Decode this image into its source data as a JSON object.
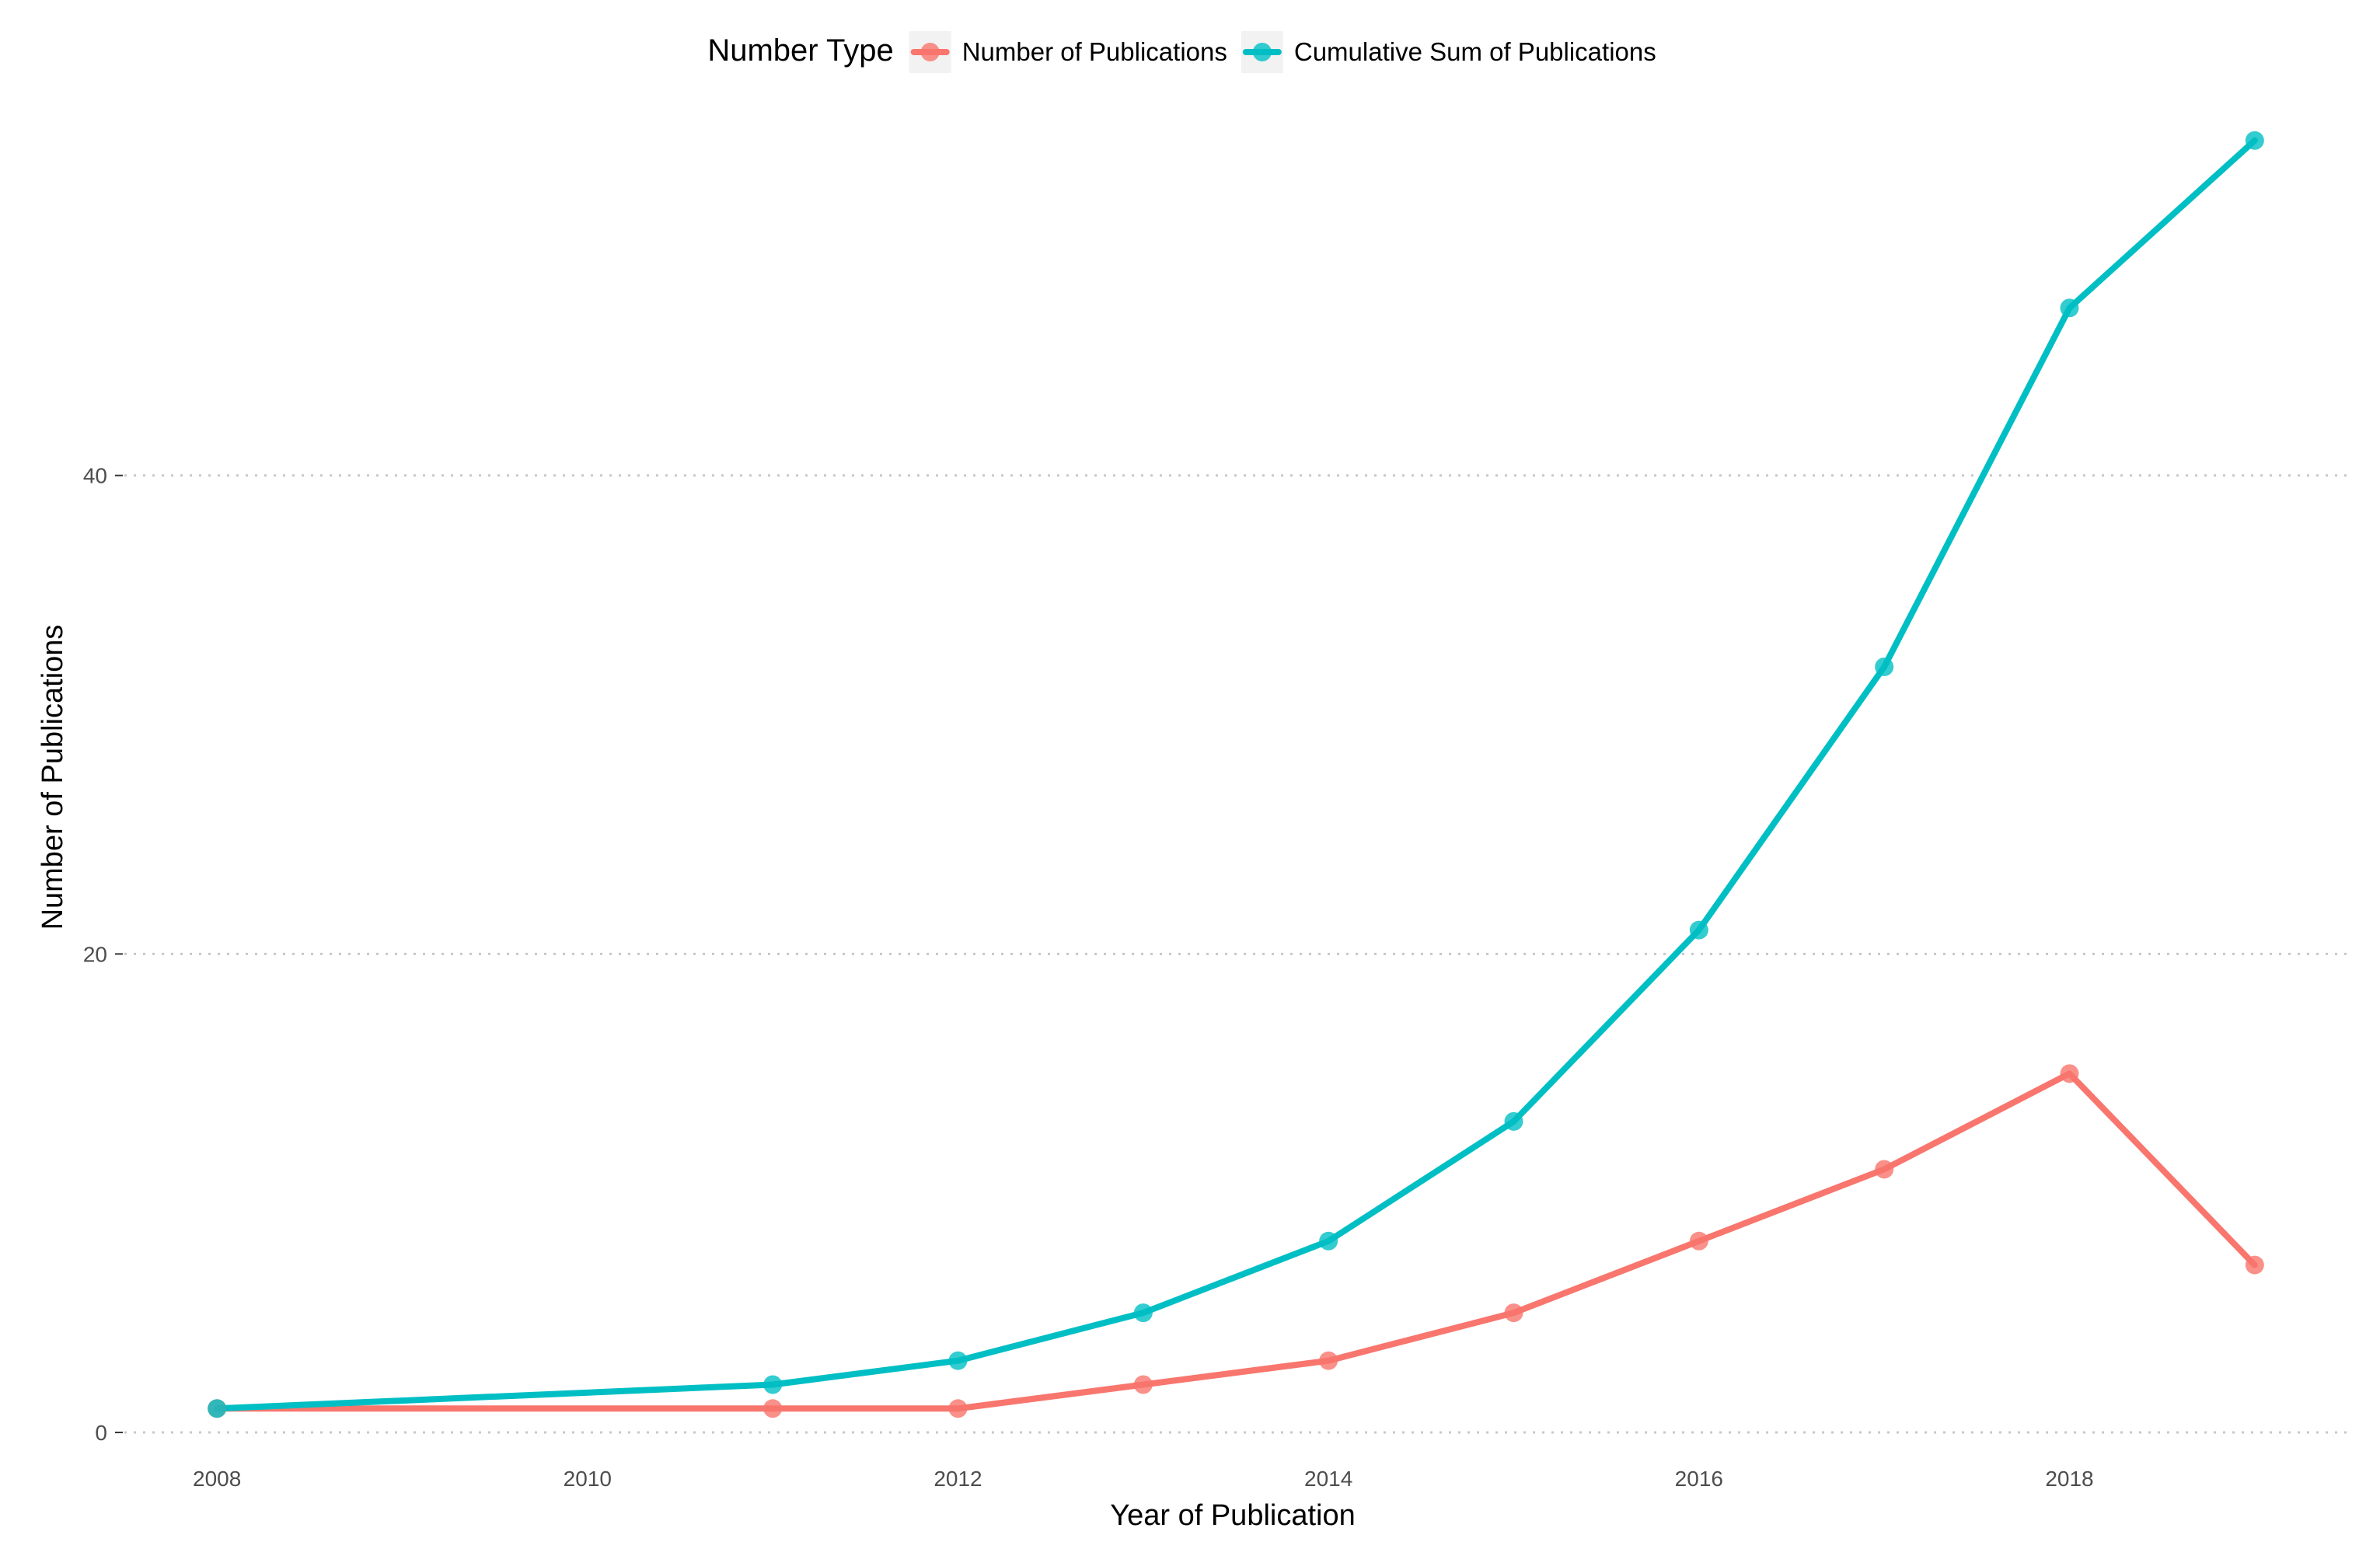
{
  "chart_data": {
    "type": "line",
    "title": "",
    "xlabel": "Year of Publication",
    "ylabel": "Number of Publications",
    "xlim": [
      2007.5,
      2019.5
    ],
    "ylim": [
      -1.2,
      55
    ],
    "xticks": [
      2008,
      2010,
      2012,
      2014,
      2016,
      2018
    ],
    "yticks": [
      0,
      20,
      40
    ],
    "grid": "horizontal-dotted",
    "legend": {
      "title": "Number Type",
      "placement": "top-center",
      "entries": [
        "Number of Publications",
        "Cumulative Sum of Publications"
      ]
    },
    "series": [
      {
        "name": "Number of Publications",
        "color": "#F8766D",
        "x": [
          2008,
          2011,
          2012,
          2013,
          2014,
          2015,
          2016,
          2017,
          2018,
          2019
        ],
        "values": [
          1,
          1,
          1,
          2,
          3,
          5,
          8,
          11,
          15,
          7
        ]
      },
      {
        "name": "Cumulative Sum of Publications",
        "color": "#00BFC4",
        "x": [
          2008,
          2011,
          2012,
          2013,
          2014,
          2015,
          2016,
          2017,
          2018,
          2019
        ],
        "values": [
          1,
          2,
          3,
          5,
          8,
          13,
          21,
          32,
          47,
          54
        ]
      }
    ]
  }
}
